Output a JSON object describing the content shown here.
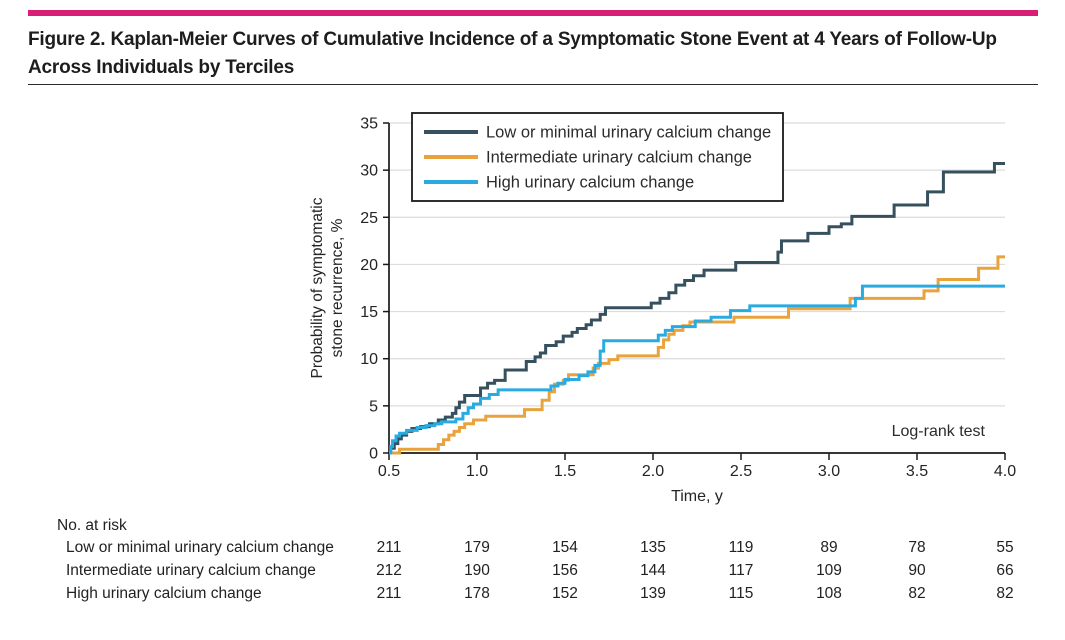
{
  "header": {
    "title_line1": "Figure 2. Kaplan-Meier Curves of Cumulative Incidence of a Symptomatic Stone Event at 4 Years of Follow-Up",
    "title_line2": "Across Individuals by Terciles"
  },
  "colors": {
    "accent_bar": "#D91F75",
    "axis": "#1a1a1a",
    "gridline": "#dcdcdc",
    "text": "#242424",
    "navy_series": "#37505E",
    "orange_series": "#E8A33D",
    "blue_series": "#29ABE2"
  },
  "chart_data": {
    "type": "line",
    "variant": "kaplan-meier-step",
    "title": "",
    "xlabel": "Time, y",
    "ylabel_lines": [
      "Probability of symptomatic",
      "stone recurrence, %"
    ],
    "xlim": [
      0.5,
      4.0
    ],
    "ylim": [
      0,
      35
    ],
    "xtick_labels": [
      "0.5",
      "1.0",
      "1.5",
      "2.0",
      "2.5",
      "3.0",
      "3.5",
      "4.0"
    ],
    "xtick_values": [
      0.5,
      1.0,
      1.5,
      2.0,
      2.5,
      3.0,
      3.5,
      4.0
    ],
    "ytick_values": [
      0,
      5,
      10,
      15,
      20,
      25,
      30,
      35
    ],
    "grid": "horizontal",
    "legend_position": "inside-top-left",
    "annotation": "Log-rank test",
    "series": [
      {
        "name": "Low or minimal urinary calcium change",
        "color": "#37505E",
        "points": [
          [
            0.5,
            0
          ],
          [
            0.51,
            0.5
          ],
          [
            0.53,
            1.0
          ],
          [
            0.55,
            1.5
          ],
          [
            0.57,
            1.9
          ],
          [
            0.6,
            2.3
          ],
          [
            0.63,
            2.6
          ],
          [
            0.68,
            2.8
          ],
          [
            0.73,
            3.1
          ],
          [
            0.78,
            3.5
          ],
          [
            0.82,
            3.8
          ],
          [
            0.86,
            4.2
          ],
          [
            0.88,
            4.8
          ],
          [
            0.9,
            5.4
          ],
          [
            0.93,
            6.1
          ],
          [
            1.02,
            6.9
          ],
          [
            1.06,
            7.4
          ],
          [
            1.1,
            7.7
          ],
          [
            1.16,
            8.8
          ],
          [
            1.28,
            9.7
          ],
          [
            1.33,
            10.2
          ],
          [
            1.36,
            10.6
          ],
          [
            1.39,
            11.4
          ],
          [
            1.45,
            11.8
          ],
          [
            1.49,
            12.4
          ],
          [
            1.54,
            12.8
          ],
          [
            1.57,
            13.2
          ],
          [
            1.62,
            13.6
          ],
          [
            1.65,
            14.1
          ],
          [
            1.7,
            14.7
          ],
          [
            1.73,
            15.4
          ],
          [
            1.99,
            15.9
          ],
          [
            2.04,
            16.4
          ],
          [
            2.09,
            17.0
          ],
          [
            2.13,
            17.8
          ],
          [
            2.18,
            18.3
          ],
          [
            2.23,
            18.8
          ],
          [
            2.29,
            19.4
          ],
          [
            2.47,
            20.2
          ],
          [
            2.71,
            21.3
          ],
          [
            2.73,
            22.5
          ],
          [
            2.88,
            23.3
          ],
          [
            3.0,
            24.0
          ],
          [
            3.07,
            24.3
          ],
          [
            3.13,
            25.1
          ],
          [
            3.37,
            26.3
          ],
          [
            3.56,
            27.7
          ],
          [
            3.65,
            29.8
          ],
          [
            3.94,
            30.7
          ],
          [
            4.0,
            30.7
          ]
        ]
      },
      {
        "name": "Intermediate urinary calcium change",
        "color": "#E8A33D",
        "points": [
          [
            0.5,
            0
          ],
          [
            0.56,
            0.4
          ],
          [
            0.78,
            0.9
          ],
          [
            0.81,
            1.4
          ],
          [
            0.84,
            1.9
          ],
          [
            0.87,
            2.3
          ],
          [
            0.9,
            2.7
          ],
          [
            0.93,
            3.1
          ],
          [
            0.98,
            3.5
          ],
          [
            1.05,
            3.9
          ],
          [
            1.27,
            4.6
          ],
          [
            1.37,
            5.6
          ],
          [
            1.41,
            6.5
          ],
          [
            1.44,
            7.3
          ],
          [
            1.49,
            7.7
          ],
          [
            1.52,
            8.3
          ],
          [
            1.66,
            9.0
          ],
          [
            1.69,
            9.5
          ],
          [
            1.75,
            9.9
          ],
          [
            1.8,
            10.3
          ],
          [
            2.03,
            11.2
          ],
          [
            2.06,
            12.0
          ],
          [
            2.09,
            12.6
          ],
          [
            2.12,
            13.0
          ],
          [
            2.17,
            13.5
          ],
          [
            2.21,
            13.9
          ],
          [
            2.46,
            14.4
          ],
          [
            2.77,
            15.3
          ],
          [
            3.12,
            16.4
          ],
          [
            3.54,
            17.2
          ],
          [
            3.62,
            18.4
          ],
          [
            3.85,
            19.6
          ],
          [
            3.96,
            20.8
          ],
          [
            4.0,
            20.8
          ]
        ]
      },
      {
        "name": "High urinary calcium change",
        "color": "#29ABE2",
        "points": [
          [
            0.5,
            0
          ],
          [
            0.51,
            0.7
          ],
          [
            0.52,
            1.3
          ],
          [
            0.54,
            1.8
          ],
          [
            0.56,
            2.1
          ],
          [
            0.6,
            2.4
          ],
          [
            0.66,
            2.7
          ],
          [
            0.71,
            2.9
          ],
          [
            0.76,
            3.1
          ],
          [
            0.8,
            3.3
          ],
          [
            0.88,
            3.6
          ],
          [
            0.92,
            4.2
          ],
          [
            0.95,
            4.8
          ],
          [
            0.98,
            5.2
          ],
          [
            1.02,
            5.8
          ],
          [
            1.07,
            6.2
          ],
          [
            1.12,
            6.7
          ],
          [
            1.42,
            7.1
          ],
          [
            1.46,
            7.4
          ],
          [
            1.5,
            7.8
          ],
          [
            1.58,
            8.2
          ],
          [
            1.63,
            8.6
          ],
          [
            1.67,
            9.3
          ],
          [
            1.7,
            10.8
          ],
          [
            1.72,
            11.9
          ],
          [
            2.03,
            12.5
          ],
          [
            2.07,
            13.0
          ],
          [
            2.11,
            13.4
          ],
          [
            2.24,
            14.0
          ],
          [
            2.33,
            14.4
          ],
          [
            2.44,
            15.1
          ],
          [
            2.55,
            15.6
          ],
          [
            3.15,
            16.4
          ],
          [
            3.19,
            17.7
          ],
          [
            4.0,
            17.7
          ]
        ]
      }
    ]
  },
  "risk_table": {
    "heading": "No. at risk",
    "rows": [
      {
        "label": "Low or minimal urinary calcium change",
        "values": [
          "211",
          "179",
          "154",
          "135",
          "119",
          "89",
          "78",
          "55"
        ]
      },
      {
        "label": "Intermediate urinary calcium change",
        "values": [
          "212",
          "190",
          "156",
          "144",
          "117",
          "109",
          "90",
          "66"
        ]
      },
      {
        "label": "High urinary calcium change",
        "values": [
          "211",
          "178",
          "152",
          "139",
          "115",
          "108",
          "82",
          "82"
        ]
      }
    ]
  }
}
